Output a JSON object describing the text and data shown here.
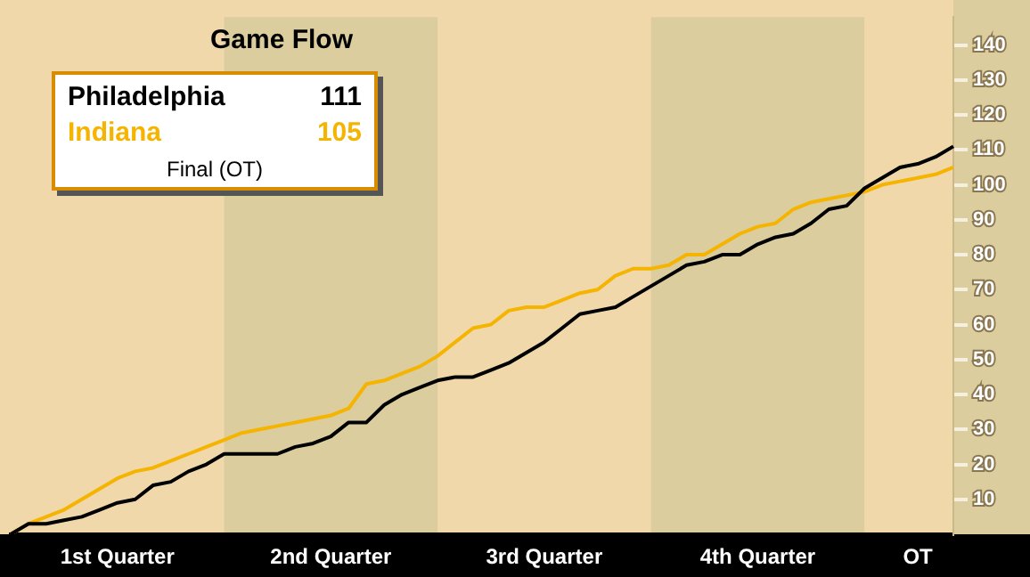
{
  "chart_data": {
    "type": "line",
    "title": "Game Flow",
    "annotations": [
      "111",
      "105",
      "Final (OT)"
    ],
    "categories": [
      null,
      null,
      null,
      null,
      null,
      null,
      "1st Quarter",
      null,
      null,
      null,
      null,
      null,
      null,
      null,
      null,
      null,
      null,
      null,
      "2nd Quarter",
      null,
      null,
      null,
      null,
      null,
      null,
      null,
      null,
      null,
      null,
      null,
      "3rd Quarter",
      null,
      null,
      null,
      null,
      null,
      null,
      null,
      null,
      null,
      null,
      null,
      "4th Quarter",
      null,
      null,
      null,
      null,
      null,
      null,
      null,
      null,
      "OT",
      null,
      null
    ],
    "ylim": [
      0,
      148
    ],
    "yticks": [
      10,
      20,
      30,
      40,
      50,
      60,
      70,
      80,
      90,
      100,
      110,
      120,
      130,
      140
    ],
    "legend": "top left",
    "marker": "none",
    "line_style": "solid",
    "series": [
      {
        "name": "Philadelphia",
        "color": "#000000",
        "values": [
          0,
          3,
          3,
          4,
          5,
          7,
          9,
          10,
          14,
          15,
          18,
          20,
          23,
          23,
          23,
          23,
          25,
          26,
          28,
          32,
          32,
          37,
          40,
          42,
          44,
          45,
          45,
          47,
          49,
          52,
          55,
          59,
          63,
          64,
          65,
          68,
          71,
          74,
          77,
          78,
          80,
          80,
          83,
          85,
          86,
          89,
          93,
          94,
          99,
          102,
          105,
          106,
          108,
          111
        ]
      },
      {
        "name": "Indiana",
        "color": "#f5b400",
        "values": [
          0,
          3,
          5,
          7,
          10,
          13,
          16,
          18,
          19,
          21,
          23,
          25,
          27,
          29,
          30,
          31,
          32,
          33,
          34,
          36,
          43,
          44,
          46,
          48,
          51,
          55,
          59,
          60,
          64,
          65,
          65,
          67,
          69,
          70,
          74,
          76,
          76,
          77,
          80,
          80,
          83,
          86,
          88,
          89,
          93,
          95,
          96,
          97,
          98,
          100,
          101,
          102,
          103,
          105
        ]
      }
    ]
  }
}
